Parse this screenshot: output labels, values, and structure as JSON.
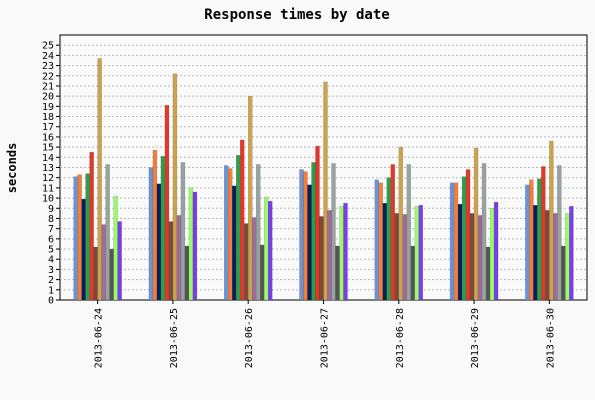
{
  "chart_data": {
    "type": "bar",
    "title": "Response times by date",
    "xlabel": "",
    "ylabel": "seconds",
    "ylim": [
      0,
      26
    ],
    "yticks": [
      0,
      1,
      2,
      3,
      4,
      5,
      6,
      7,
      8,
      9,
      10,
      11,
      12,
      13,
      14,
      15,
      16,
      17,
      18,
      19,
      20,
      21,
      22,
      23,
      24,
      25
    ],
    "grid": true,
    "legend": "none",
    "categories": [
      "2013-06-24",
      "2013-06-25",
      "2013-06-26",
      "2013-06-27",
      "2013-06-28",
      "2013-06-29",
      "2013-06-30"
    ],
    "series": [
      {
        "color": "#6b93d6",
        "values": [
          12.1,
          13.0,
          13.2,
          12.8,
          11.8,
          11.5,
          11.3
        ]
      },
      {
        "color": "#f07f3c",
        "values": [
          12.3,
          14.7,
          12.9,
          12.6,
          11.5,
          11.5,
          11.8
        ]
      },
      {
        "color": "#0a1f5c",
        "values": [
          9.9,
          11.4,
          11.2,
          11.3,
          9.5,
          9.4,
          9.3
        ]
      },
      {
        "color": "#2e9e4e",
        "values": [
          12.4,
          14.1,
          14.2,
          13.5,
          12.0,
          12.1,
          11.9
        ]
      },
      {
        "color": "#e0392b",
        "values": [
          14.5,
          19.1,
          15.7,
          15.1,
          13.3,
          12.8,
          13.1
        ]
      },
      {
        "color": "#7a4a3a",
        "values": [
          5.2,
          7.7,
          7.5,
          8.2,
          8.5,
          8.5,
          8.8
        ]
      },
      {
        "color": "#c9a34e",
        "values": [
          23.7,
          22.2,
          20.0,
          21.4,
          15.0,
          14.9,
          15.6
        ]
      },
      {
        "color": "#a06a9a",
        "values": [
          7.4,
          8.3,
          8.1,
          8.8,
          8.4,
          8.3,
          8.5
        ]
      },
      {
        "color": "#97a3a0",
        "values": [
          13.3,
          13.5,
          13.3,
          13.4,
          13.3,
          13.4,
          13.2
        ]
      },
      {
        "color": "#555555",
        "values": [
          5.0,
          5.3,
          5.4,
          5.3,
          5.3,
          5.2,
          5.3
        ]
      },
      {
        "color": "#9bfa6b",
        "values": [
          10.2,
          11.0,
          10.1,
          9.2,
          9.2,
          9.0,
          8.5
        ]
      },
      {
        "color": "#7a3de8",
        "values": [
          7.7,
          10.6,
          9.7,
          9.5,
          9.3,
          9.6,
          9.2
        ]
      }
    ]
  }
}
